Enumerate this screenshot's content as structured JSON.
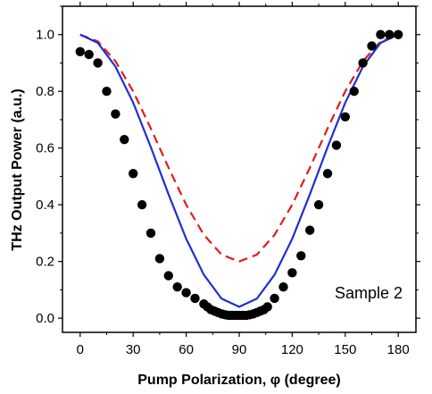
{
  "chart_data": {
    "type": "scatter",
    "xlabel": "Pump Polarization, φ (degree)",
    "ylabel": "THz Output Power (a.u.)",
    "annotation": "Sample 2",
    "xlim": [
      -10,
      190
    ],
    "ylim": [
      -0.05,
      1.1
    ],
    "x_ticks": [
      0,
      30,
      60,
      90,
      120,
      150,
      180
    ],
    "x_tick_labels": [
      "0",
      "30",
      "60",
      "90",
      "120",
      "150",
      "180"
    ],
    "y_ticks": [
      0.0,
      0.2,
      0.4,
      0.6,
      0.8,
      1.0
    ],
    "y_tick_labels": [
      "0.0",
      "0.2",
      "0.4",
      "0.6",
      "0.8",
      "1.0"
    ],
    "grid": false,
    "series": [
      {
        "kind": "points",
        "color": "#000000",
        "x": [
          0,
          5,
          10,
          15,
          20,
          25,
          30,
          35,
          40,
          45,
          50,
          55,
          60,
          65,
          70,
          72,
          74,
          76,
          78,
          80,
          82,
          84,
          86,
          88,
          90,
          92,
          94,
          96,
          98,
          100,
          102,
          104,
          106,
          110,
          115,
          120,
          125,
          130,
          135,
          140,
          145,
          150,
          155,
          160,
          165,
          170,
          175,
          180
        ],
        "y": [
          0.94,
          0.93,
          0.9,
          0.8,
          0.72,
          0.63,
          0.51,
          0.4,
          0.3,
          0.21,
          0.15,
          0.11,
          0.09,
          0.07,
          0.05,
          0.04,
          0.03,
          0.025,
          0.02,
          0.015,
          0.012,
          0.01,
          0.01,
          0.01,
          0.01,
          0.01,
          0.01,
          0.012,
          0.015,
          0.02,
          0.025,
          0.03,
          0.04,
          0.07,
          0.11,
          0.16,
          0.22,
          0.31,
          0.4,
          0.51,
          0.61,
          0.71,
          0.8,
          0.9,
          0.96,
          1.0,
          1.0,
          1.0
        ]
      },
      {
        "kind": "solid-line",
        "color": "#1f2fd1",
        "x": [
          0,
          10,
          20,
          30,
          40,
          50,
          60,
          70,
          80,
          90,
          100,
          110,
          120,
          130,
          140,
          150,
          160,
          170,
          180
        ],
        "y": [
          1.0,
          0.971,
          0.887,
          0.76,
          0.603,
          0.437,
          0.28,
          0.153,
          0.069,
          0.04,
          0.069,
          0.153,
          0.28,
          0.437,
          0.603,
          0.76,
          0.887,
          0.971,
          1.0
        ]
      },
      {
        "kind": "dashed-line",
        "color": "#e01b1b",
        "x": [
          0,
          10,
          20,
          30,
          40,
          50,
          60,
          70,
          80,
          90,
          100,
          110,
          120,
          130,
          140,
          150,
          160,
          170,
          180
        ],
        "y": [
          1.0,
          0.976,
          0.906,
          0.8,
          0.669,
          0.531,
          0.4,
          0.294,
          0.224,
          0.2,
          0.224,
          0.294,
          0.4,
          0.531,
          0.669,
          0.8,
          0.906,
          0.976,
          1.0
        ]
      }
    ]
  }
}
